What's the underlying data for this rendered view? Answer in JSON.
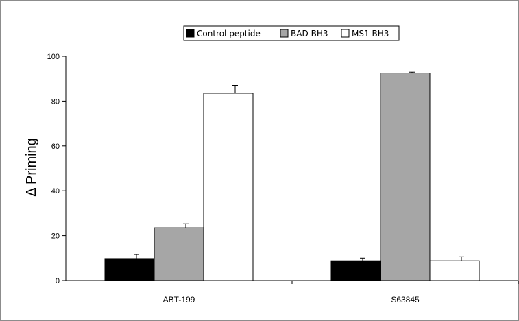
{
  "chart_data": {
    "type": "bar",
    "title": "",
    "xlabel": "",
    "ylabel": "Δ Priming",
    "ylim": [
      0,
      100
    ],
    "yticks": [
      "0",
      "20",
      "40",
      "60",
      "80",
      "100"
    ],
    "categories": [
      "ABT-199",
      "S63845"
    ],
    "series": [
      {
        "name": "Control peptide",
        "values": [
          9.8,
          8.8
        ],
        "errors": [
          1.8,
          1.2
        ],
        "color": "#000000"
      },
      {
        "name": "BAD-BH3",
        "values": [
          23.5,
          92.5
        ],
        "errors": [
          1.8,
          0.4
        ],
        "color": "#a6a6a6"
      },
      {
        "name": "MS1-BH3",
        "values": [
          83.5,
          8.8
        ],
        "errors": [
          3.5,
          1.8
        ],
        "color": "#ffffff"
      }
    ],
    "legend_position": "top-center",
    "grid": false
  }
}
